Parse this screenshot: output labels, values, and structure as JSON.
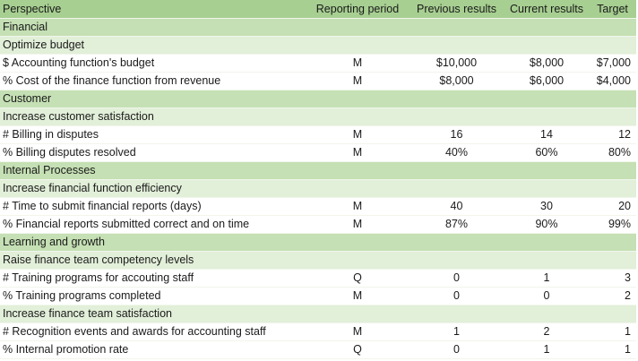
{
  "headers": {
    "perspective": "Perspective",
    "period": "Reporting period",
    "previous": "Previous results",
    "current": "Current results",
    "target": "Target"
  },
  "rows": [
    {
      "type": "perspective",
      "label": "Financial"
    },
    {
      "type": "objective",
      "label": "Optimize budget"
    },
    {
      "type": "metric",
      "label": "$ Accounting function's budget",
      "period": "M",
      "previous": "$10,000",
      "current": "$8,000",
      "target": "$7,000"
    },
    {
      "type": "metric",
      "label": "% Cost of the finance function from revenue",
      "period": "M",
      "previous": "$8,000",
      "current": "$6,000",
      "target": "$4,000"
    },
    {
      "type": "perspective",
      "label": "Customer"
    },
    {
      "type": "objective",
      "label": "Increase customer satisfaction"
    },
    {
      "type": "metric",
      "label": "#  Billing in disputes",
      "period": "M",
      "previous": "16",
      "current": "14",
      "target": "12"
    },
    {
      "type": "metric",
      "label": "% Billing disputes resolved",
      "period": "M",
      "previous": "40%",
      "current": "60%",
      "target": "80%"
    },
    {
      "type": "perspective",
      "label": "Internal Processes"
    },
    {
      "type": "objective",
      "label": "Increase financial function efficiency"
    },
    {
      "type": "metric",
      "label": "# Time to submit financial reports (days)",
      "period": "M",
      "previous": "40",
      "current": "30",
      "target": "20"
    },
    {
      "type": "metric",
      "label": "% Financial reports submitted correct and on time",
      "period": "M",
      "previous": "87%",
      "current": "90%",
      "target": "99%"
    },
    {
      "type": "perspective",
      "label": "Learning and growth"
    },
    {
      "type": "objective",
      "label": "Raise finance team competency levels"
    },
    {
      "type": "metric",
      "label": "# Training programs for accouting staff",
      "period": "Q",
      "previous": "0",
      "current": "1",
      "target": "3"
    },
    {
      "type": "metric",
      "label": "% Training programs completed",
      "period": "M",
      "previous": "0",
      "current": "0",
      "target": "2"
    },
    {
      "type": "objective",
      "label": "Increase finance team satisfaction"
    },
    {
      "type": "metric",
      "label": "# Recognition events and awards for accounting staff",
      "period": "M",
      "previous": "1",
      "current": "2",
      "target": "1"
    },
    {
      "type": "metric",
      "label": "% Internal  promotion rate",
      "period": "Q",
      "previous": "0",
      "current": "1",
      "target": "1"
    }
  ]
}
